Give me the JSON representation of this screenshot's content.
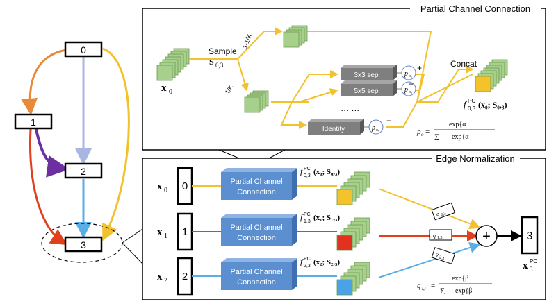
{
  "left_graph": {
    "nodes": [
      "0",
      "1",
      "2",
      "3"
    ]
  },
  "top_panel": {
    "title": "Partial Channel Connection",
    "input_label": "x",
    "input_sub": "0",
    "sample_label": "Sample",
    "sample_math": "S",
    "sample_sub": "0,3",
    "frac_upper": "1-1/K",
    "frac_lower": "1/K",
    "ops": [
      "3x3 sep",
      "5x5 sep",
      "Identity"
    ],
    "dots": "…  …",
    "p_labels": [
      "p",
      "p",
      "p"
    ],
    "p_subs": [
      "o₁",
      "o₂",
      "o₉"
    ],
    "plus": "+",
    "concat": "Concat",
    "output_f": "f",
    "output_sup": "PC",
    "output_sub": "0,3",
    "output_args": "(x₀; S₀,₃)",
    "formula_lhs": "p",
    "formula_lhs_sub": "o",
    "formula_num": "exp{α",
    "formula_num_tail": "}",
    "formula_den": "∑",
    "formula_den_tail": "exp{α",
    "formula_den_end": "}"
  },
  "bottom_panel": {
    "title": "Edge Normalization",
    "rows": [
      {
        "x_label": "x",
        "x_sub": "0",
        "node": "0",
        "box": "Partial Channel Connection",
        "f_sub": "0,3",
        "f_args": "(x₀; S₀,₃)",
        "q": "q",
        "q_sub": "0,3"
      },
      {
        "x_label": "x",
        "x_sub": "1",
        "node": "1",
        "box": "Partial Channel Connection",
        "f_sub": "1,3",
        "f_args": "(x₁; S₁,₃)",
        "q": "q",
        "q_sub": "1,3"
      },
      {
        "x_label": "x",
        "x_sub": "2",
        "node": "2",
        "box": "Partial Channel Connection",
        "f_sub": "2,3",
        "f_args": "(x₂; S₂,₃)",
        "q": "q",
        "q_sub": "2,3"
      }
    ],
    "f_label": "f",
    "f_sup": "PC",
    "sum_symbol": "+",
    "output_node": "3",
    "output_x": "x",
    "output_sub": "3",
    "output_sup": "PC",
    "formula_lhs": "q",
    "formula_lhs_sub": "i,j",
    "formula_num": "exp{β",
    "formula_den": "∑",
    "formula_den_tail": "exp{β"
  },
  "colors": {
    "edge_orange": "#e88a3a",
    "edge_blue_light": "#a9b7e0",
    "edge_yellow": "#f2c12e",
    "edge_purple": "#6b2fa0",
    "edge_red": "#e2401d",
    "edge_blue": "#5aaee6",
    "box_blue": "#5b8fcf",
    "stack_green": "#a8d08d",
    "feat_yellow": "#f4c22b",
    "feat_red": "#e2321f",
    "feat_blue": "#4aa3e8",
    "op_gray": "#7f7f7f"
  }
}
